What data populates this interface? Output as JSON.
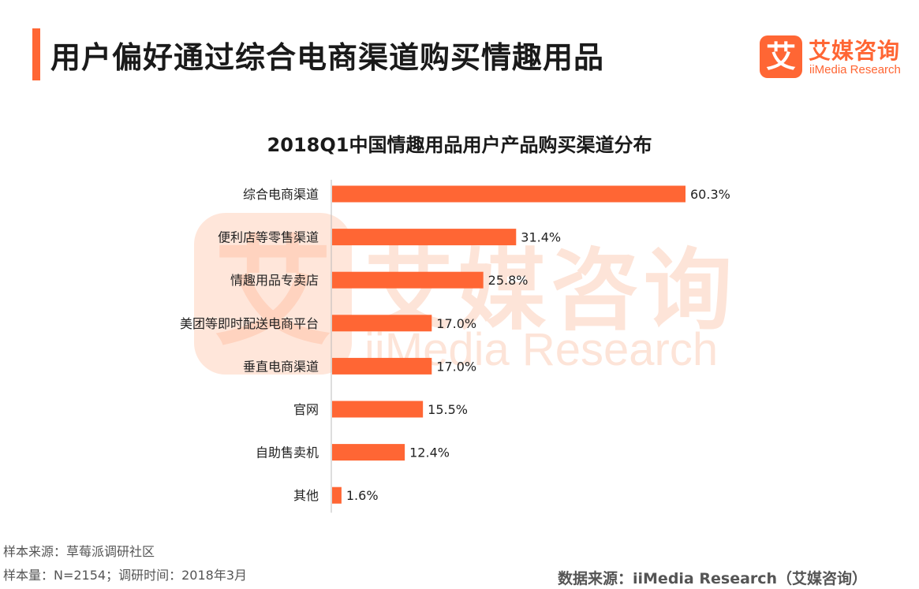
{
  "page_title": "用户偏好通过综合电商渠道购买情趣用品",
  "logo": {
    "mark": "艾",
    "cn": "艾媒咨询",
    "en": "iiMedia Research"
  },
  "watermark": {
    "cn": "艾媒咨询",
    "en": "iiMedia Research"
  },
  "chart_data": {
    "type": "bar",
    "orientation": "horizontal",
    "title": "2018Q1中国情趣用品用户产品购买渠道分布",
    "xlabel": "",
    "ylabel": "",
    "unit": "%",
    "categories": [
      "综合电商渠道",
      "便利店等零售渠道",
      "情趣用品专卖店",
      "美团等即时配送电商平台",
      "垂直电商渠道",
      "官网",
      "自助售卖机",
      "其他"
    ],
    "values": [
      60.3,
      31.4,
      25.8,
      17.0,
      17.0,
      15.5,
      12.4,
      1.6
    ],
    "data_labels": [
      "60.3%",
      "31.4%",
      "25.8%",
      "17.0%",
      "17.0%",
      "15.5%",
      "12.4%",
      "1.6%"
    ],
    "xlim": [
      0,
      60.3
    ],
    "grid": false,
    "legend": "none",
    "bar_color": "#ff6634"
  },
  "footer": {
    "sample_source": "样本来源：草莓派调研社区",
    "sample_size": "样本量：N=2154；调研时间：2018年3月",
    "data_source": "数据来源：iiMedia Research（艾媒咨询）"
  }
}
